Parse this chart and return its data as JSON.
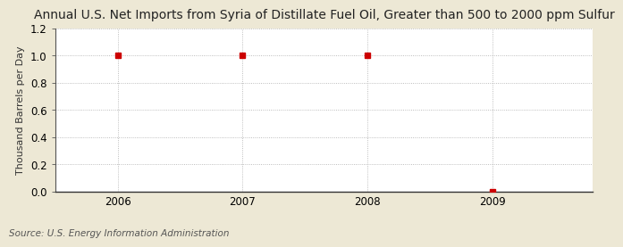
{
  "title": "Annual U.S. Net Imports from Syria of Distillate Fuel Oil, Greater than 500 to 2000 ppm Sulfur",
  "ylabel": "Thousand Barrels per Day",
  "source": "Source: U.S. Energy Information Administration",
  "x_values": [
    2006,
    2007,
    2008,
    2009
  ],
  "y_values": [
    1.0,
    1.0,
    1.0,
    0.0
  ],
  "xlim": [
    2005.5,
    2009.8
  ],
  "ylim": [
    0.0,
    1.2
  ],
  "yticks": [
    0.0,
    0.2,
    0.4,
    0.6,
    0.8,
    1.0,
    1.2
  ],
  "xticks": [
    2006,
    2007,
    2008,
    2009
  ],
  "fig_bg_color": "#ede8d5",
  "plot_bg_color": "#ffffff",
  "marker_color": "#cc0000",
  "grid_color": "#aaaaaa",
  "title_fontsize": 10,
  "label_fontsize": 8,
  "tick_fontsize": 8.5,
  "source_fontsize": 7.5
}
